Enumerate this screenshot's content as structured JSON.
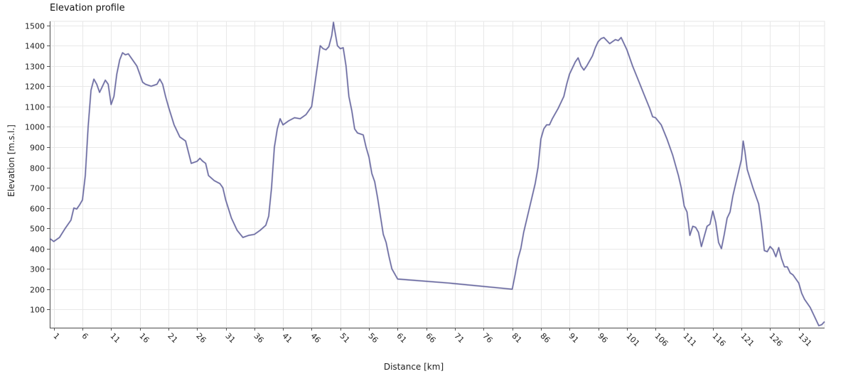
{
  "chart_data": {
    "type": "line",
    "title": "Elevation profile",
    "xlabel": "Distance [km]",
    "ylabel": "Elevation [m.s.l.]",
    "xlim": [
      0.3,
      135.5
    ],
    "ylim": [
      10,
      1520
    ],
    "xticks": [
      1,
      6,
      11,
      16,
      21,
      26,
      31,
      36,
      41,
      46,
      51,
      56,
      61,
      66,
      71,
      76,
      81,
      86,
      91,
      96,
      101,
      106,
      111,
      116,
      121,
      126,
      131
    ],
    "yticks": [
      100,
      200,
      300,
      400,
      500,
      600,
      700,
      800,
      900,
      1000,
      1100,
      1200,
      1300,
      1400,
      1500
    ],
    "grid": true,
    "series": [
      {
        "name": "",
        "color": "#6666a0",
        "points": [
          [
            0.3,
            450
          ],
          [
            1,
            435
          ],
          [
            2,
            455
          ],
          [
            3,
            500
          ],
          [
            4,
            540
          ],
          [
            4.5,
            600
          ],
          [
            5,
            595
          ],
          [
            5.5,
            615
          ],
          [
            6,
            640
          ],
          [
            6.5,
            760
          ],
          [
            7,
            1000
          ],
          [
            7.5,
            1180
          ],
          [
            8,
            1235
          ],
          [
            8.5,
            1210
          ],
          [
            9,
            1170
          ],
          [
            9.5,
            1200
          ],
          [
            10,
            1230
          ],
          [
            10.5,
            1210
          ],
          [
            11,
            1110
          ],
          [
            11.5,
            1150
          ],
          [
            12,
            1260
          ],
          [
            12.5,
            1330
          ],
          [
            13,
            1365
          ],
          [
            13.5,
            1355
          ],
          [
            14,
            1360
          ],
          [
            15,
            1320
          ],
          [
            15.5,
            1300
          ],
          [
            16,
            1260
          ],
          [
            16.5,
            1220
          ],
          [
            17,
            1210
          ],
          [
            18,
            1200
          ],
          [
            19,
            1210
          ],
          [
            19.5,
            1235
          ],
          [
            20,
            1210
          ],
          [
            20.5,
            1150
          ],
          [
            21,
            1100
          ],
          [
            22,
            1010
          ],
          [
            23,
            950
          ],
          [
            24,
            930
          ],
          [
            25,
            820
          ],
          [
            26,
            830
          ],
          [
            26.5,
            845
          ],
          [
            27,
            830
          ],
          [
            27.5,
            820
          ],
          [
            28,
            760
          ],
          [
            29,
            735
          ],
          [
            30,
            720
          ],
          [
            30.5,
            700
          ],
          [
            31,
            640
          ],
          [
            32,
            550
          ],
          [
            33,
            490
          ],
          [
            34,
            455
          ],
          [
            35,
            465
          ],
          [
            36,
            470
          ],
          [
            37,
            490
          ],
          [
            38,
            515
          ],
          [
            38.5,
            560
          ],
          [
            39,
            700
          ],
          [
            39.5,
            900
          ],
          [
            40,
            990
          ],
          [
            40.5,
            1040
          ],
          [
            41,
            1010
          ],
          [
            42,
            1030
          ],
          [
            43,
            1045
          ],
          [
            44,
            1040
          ],
          [
            45,
            1060
          ],
          [
            46,
            1100
          ],
          [
            46.5,
            1200
          ],
          [
            47,
            1300
          ],
          [
            47.5,
            1400
          ],
          [
            48,
            1385
          ],
          [
            48.5,
            1380
          ],
          [
            49,
            1395
          ],
          [
            49.5,
            1450
          ],
          [
            49.8,
            1515
          ],
          [
            50,
            1480
          ],
          [
            50.5,
            1400
          ],
          [
            51,
            1385
          ],
          [
            51.5,
            1390
          ],
          [
            52,
            1300
          ],
          [
            52.5,
            1150
          ],
          [
            53,
            1080
          ],
          [
            53.5,
            990
          ],
          [
            54,
            970
          ],
          [
            55,
            960
          ],
          [
            55.5,
            900
          ],
          [
            56,
            850
          ],
          [
            56.5,
            770
          ],
          [
            57,
            730
          ],
          [
            57.5,
            650
          ],
          [
            58,
            560
          ],
          [
            58.5,
            470
          ],
          [
            59,
            430
          ],
          [
            59.5,
            360
          ],
          [
            60,
            300
          ],
          [
            61,
            250
          ],
          [
            70,
            230
          ],
          [
            81,
            200
          ],
          [
            81.5,
            270
          ],
          [
            82,
            350
          ],
          [
            82.5,
            400
          ],
          [
            83,
            480
          ],
          [
            84,
            600
          ],
          [
            85,
            720
          ],
          [
            85.5,
            800
          ],
          [
            86,
            940
          ],
          [
            86.5,
            990
          ],
          [
            87,
            1010
          ],
          [
            87.5,
            1010
          ],
          [
            88,
            1040
          ],
          [
            89,
            1090
          ],
          [
            90,
            1150
          ],
          [
            90.5,
            1210
          ],
          [
            91,
            1260
          ],
          [
            92,
            1320
          ],
          [
            92.5,
            1340
          ],
          [
            93,
            1300
          ],
          [
            93.5,
            1280
          ],
          [
            94,
            1300
          ],
          [
            95,
            1350
          ],
          [
            95.5,
            1390
          ],
          [
            96,
            1420
          ],
          [
            96.5,
            1435
          ],
          [
            97,
            1440
          ],
          [
            98,
            1410
          ],
          [
            99,
            1430
          ],
          [
            99.5,
            1425
          ],
          [
            100,
            1440
          ],
          [
            101,
            1380
          ],
          [
            102,
            1300
          ],
          [
            103,
            1230
          ],
          [
            104,
            1160
          ],
          [
            105,
            1090
          ],
          [
            105.5,
            1050
          ],
          [
            106,
            1045
          ],
          [
            107,
            1010
          ],
          [
            108,
            940
          ],
          [
            109,
            860
          ],
          [
            110,
            760
          ],
          [
            110.5,
            700
          ],
          [
            111,
            610
          ],
          [
            111.5,
            580
          ],
          [
            112,
            465
          ],
          [
            112.5,
            510
          ],
          [
            113,
            505
          ],
          [
            113.5,
            480
          ],
          [
            114,
            410
          ],
          [
            114.5,
            460
          ],
          [
            115,
            510
          ],
          [
            115.5,
            520
          ],
          [
            116,
            585
          ],
          [
            116.5,
            530
          ],
          [
            117,
            430
          ],
          [
            117.5,
            400
          ],
          [
            118,
            470
          ],
          [
            118.5,
            550
          ],
          [
            119,
            580
          ],
          [
            119.5,
            660
          ],
          [
            120,
            720
          ],
          [
            120.5,
            780
          ],
          [
            121,
            840
          ],
          [
            121.3,
            930
          ],
          [
            121.6,
            880
          ],
          [
            122,
            790
          ],
          [
            123,
            700
          ],
          [
            124,
            620
          ],
          [
            124.5,
            520
          ],
          [
            125,
            390
          ],
          [
            125.5,
            385
          ],
          [
            126,
            410
          ],
          [
            126.5,
            395
          ],
          [
            127,
            360
          ],
          [
            127.5,
            405
          ],
          [
            128,
            350
          ],
          [
            128.5,
            310
          ],
          [
            129,
            310
          ],
          [
            129.5,
            280
          ],
          [
            130,
            270
          ],
          [
            131,
            230
          ],
          [
            131.5,
            180
          ],
          [
            132,
            150
          ],
          [
            133,
            110
          ],
          [
            134,
            50
          ],
          [
            134.5,
            20
          ],
          [
            135,
            25
          ],
          [
            135.5,
            40
          ]
        ]
      }
    ]
  }
}
